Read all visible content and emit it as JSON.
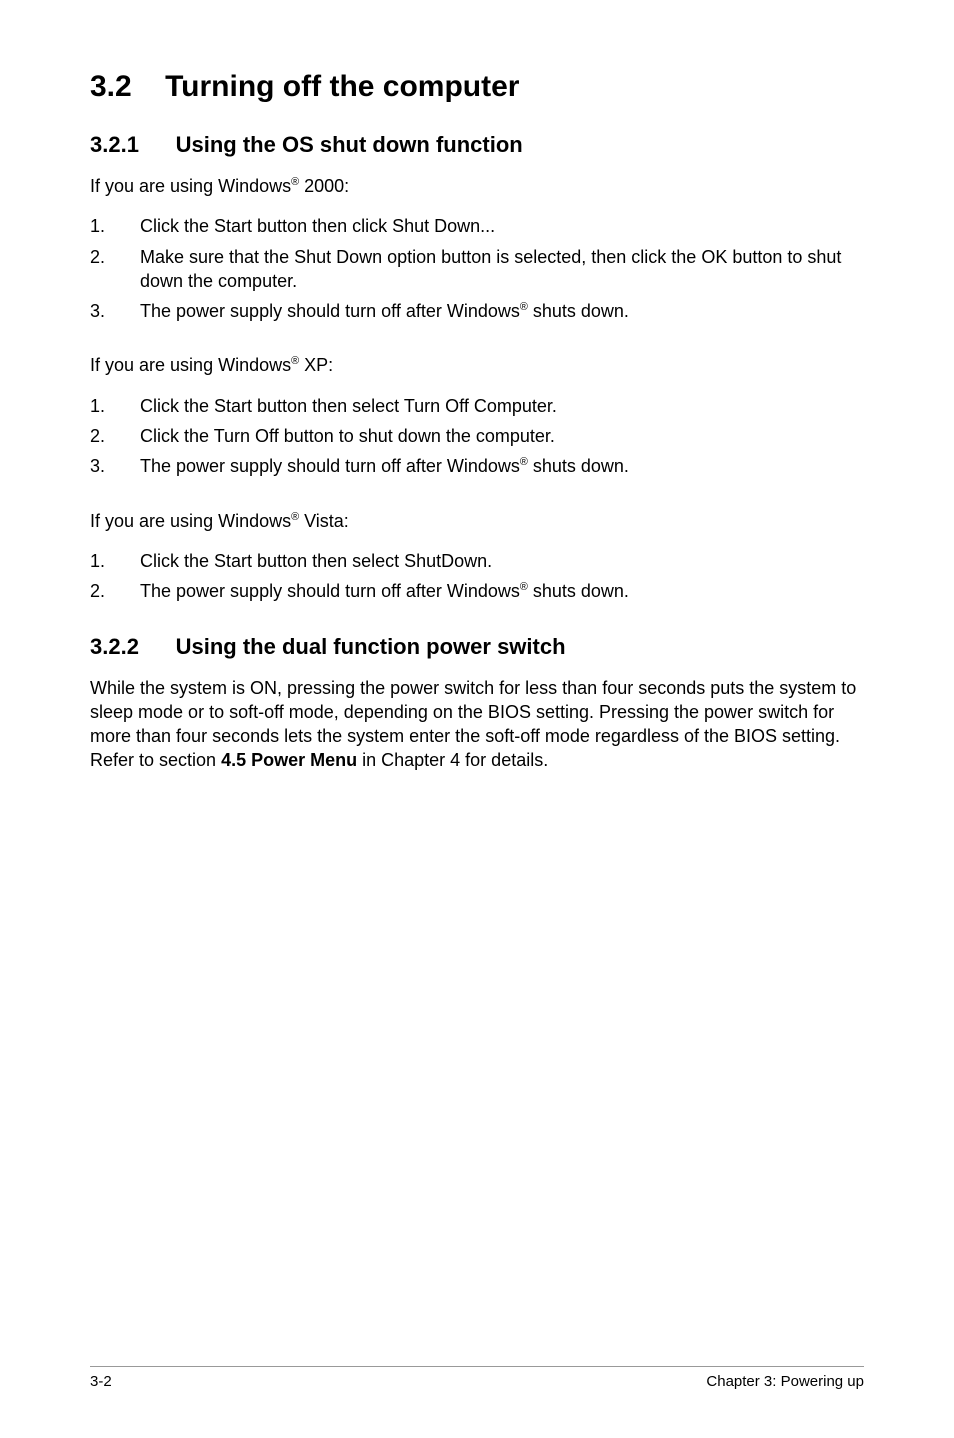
{
  "section": {
    "number": "3.2",
    "title": "Turning off the computer"
  },
  "subsection1": {
    "number": "3.2.1",
    "title": "Using the OS shut down function",
    "intro_2000_a": "If you are using Windows",
    "intro_2000_b": " 2000:",
    "steps_2000": {
      "s1": "Click the Start button then click Shut Down...",
      "s2": "Make sure that the Shut Down option button is selected, then click the OK button to shut down the computer.",
      "s3a": "The power supply should turn off after Windows",
      "s3b": " shuts down."
    },
    "intro_xp_a": "If you are using Windows",
    "intro_xp_b": " XP:",
    "steps_xp": {
      "s1": "Click the Start button then select Turn Off Computer.",
      "s2": "Click the Turn Off button to shut down the computer.",
      "s3a": "The power supply should turn off after Windows",
      "s3b": " shuts down."
    },
    "intro_vista_a": "If you are using Windows",
    "intro_vista_b": " Vista:",
    "steps_vista": {
      "s1": "Click the Start button then select ShutDown.",
      "s2a": "The power supply should turn off after Windows",
      "s2b": " shuts down."
    }
  },
  "subsection2": {
    "number": "3.2.2",
    "title": "Using the dual function power switch",
    "body_a": "While the system is ON, pressing the power switch for less than four seconds puts the system to sleep mode or to soft-off mode, depending on the BIOS setting. Pressing the power switch for more than four seconds lets the system enter the soft-off mode regardless of the BIOS setting. Refer to section ",
    "body_bold": "4.5  Power Menu",
    "body_b": " in Chapter 4 for details."
  },
  "reg": "®",
  "footer": {
    "page": "3-2",
    "chapter": "Chapter 3: Powering up"
  }
}
